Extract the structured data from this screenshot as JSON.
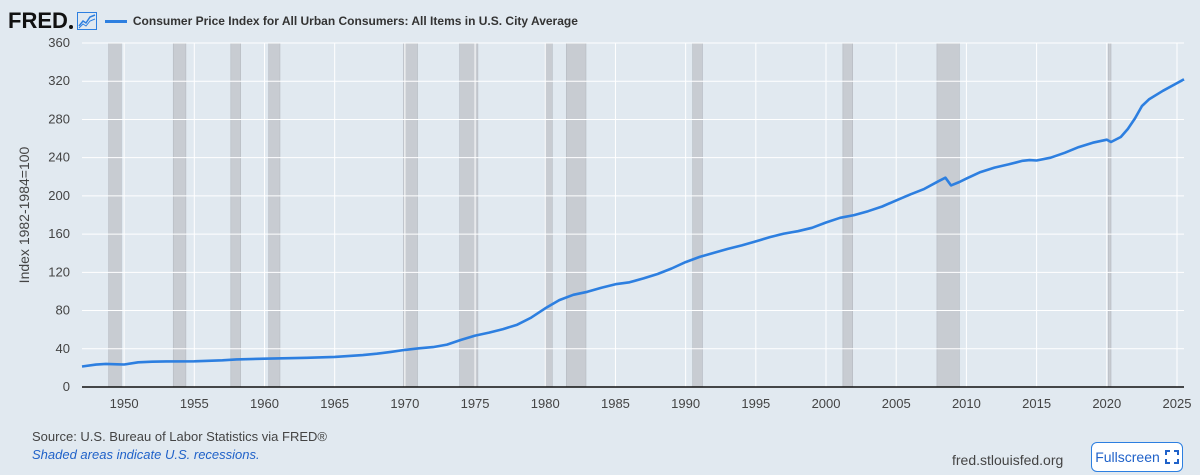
{
  "header": {
    "logo": "FRED",
    "series_title": "Consumer Price Index for All Urban Consumers: All Items in U.S. City Average",
    "logo_icon": "line-chart-icon"
  },
  "footer": {
    "source": "Source: U.S. Bureau of Labor Statistics via FRED®",
    "note": "Shaded areas indicate U.S. recessions.",
    "url": "fred.stlouisfed.org",
    "fullscreen_label": "Fullscreen",
    "fullscreen_icon": "fullscreen-icon"
  },
  "colors": {
    "line": "#2d7fe0",
    "recession": "#c8ccd2",
    "background": "#e1e9f0",
    "grid": "#ffffff"
  },
  "chart_data": {
    "type": "line",
    "title": "Consumer Price Index for All Urban Consumers: All Items in U.S. City Average",
    "ylabel": "Index 1982-1984=100",
    "xlabel": "",
    "xlim": [
      1947,
      2025.5
    ],
    "ylim": [
      0,
      360
    ],
    "yticks": [
      "0",
      "40",
      "80",
      "120",
      "160",
      "200",
      "240",
      "280",
      "320",
      "360"
    ],
    "xticks": [
      "1950",
      "1955",
      "1960",
      "1965",
      "1970",
      "1975",
      "1980",
      "1985",
      "1990",
      "1995",
      "2000",
      "2005",
      "2010",
      "2015",
      "2020",
      "2025"
    ],
    "grid": true,
    "recessions": [
      [
        1948.9,
        1949.8
      ],
      [
        1953.5,
        1954.4
      ],
      [
        1957.6,
        1958.3
      ],
      [
        1960.3,
        1961.1
      ],
      [
        1969.9,
        1970.9
      ],
      [
        1973.9,
        1975.2
      ],
      [
        1980.0,
        1980.5
      ],
      [
        1981.5,
        1982.9
      ],
      [
        1990.5,
        1991.2
      ],
      [
        2001.2,
        2001.9
      ],
      [
        2007.9,
        2009.5
      ],
      [
        2020.1,
        2020.3
      ]
    ],
    "series": [
      {
        "x": [
          1947.0,
          1948.0,
          1948.7,
          1949.5,
          1950.0,
          1951.0,
          1952.0,
          1953.0,
          1955.0,
          1957.0,
          1958.0,
          1960.0,
          1963.0,
          1965.0,
          1967.0,
          1968.0,
          1969.0,
          1970.0,
          1971.0,
          1972.0,
          1973.0,
          1974.0,
          1975.0,
          1976.0,
          1977.0,
          1978.0,
          1979.0,
          1980.0,
          1981.0,
          1982.0,
          1983.0,
          1984.0,
          1985.0,
          1986.0,
          1987.0,
          1988.0,
          1989.0,
          1990.0,
          1991.0,
          1992.0,
          1993.0,
          1994.0,
          1995.0,
          1996.0,
          1997.0,
          1998.0,
          1999.0,
          2000.0,
          2001.0,
          2002.0,
          2003.0,
          2004.0,
          2005.0,
          2006.0,
          2007.0,
          2008.0,
          2008.5,
          2008.9,
          2009.5,
          2010.0,
          2011.0,
          2012.0,
          2013.0,
          2014.0,
          2014.5,
          2015.0,
          2016.0,
          2017.0,
          2018.0,
          2019.0,
          2020.0,
          2020.3,
          2021.0,
          2021.5,
          2022.0,
          2022.5,
          2023.0,
          2024.0,
          2025.0,
          2025.5
        ],
        "y": [
          21.5,
          23.4,
          24.2,
          23.8,
          23.5,
          25.9,
          26.5,
          26.8,
          26.9,
          27.9,
          28.9,
          29.6,
          30.6,
          31.5,
          33.4,
          34.8,
          36.7,
          38.8,
          40.5,
          41.8,
          44.4,
          49.3,
          53.8,
          56.9,
          60.6,
          65.2,
          72.6,
          82.4,
          90.9,
          96.5,
          99.6,
          103.9,
          107.6,
          109.6,
          113.6,
          118.3,
          124.0,
          130.7,
          136.2,
          140.3,
          144.5,
          148.2,
          152.4,
          156.9,
          160.5,
          163.0,
          166.6,
          172.2,
          177.1,
          179.9,
          184.0,
          188.9,
          195.3,
          201.6,
          207.3,
          215.3,
          219.0,
          211.0,
          214.5,
          218.1,
          224.9,
          229.6,
          233.0,
          236.7,
          237.5,
          237.0,
          240.0,
          245.1,
          251.1,
          255.7,
          258.8,
          256.4,
          261.6,
          270.0,
          281.0,
          294.0,
          301.0,
          310.0,
          318.0,
          322.0
        ]
      }
    ]
  }
}
